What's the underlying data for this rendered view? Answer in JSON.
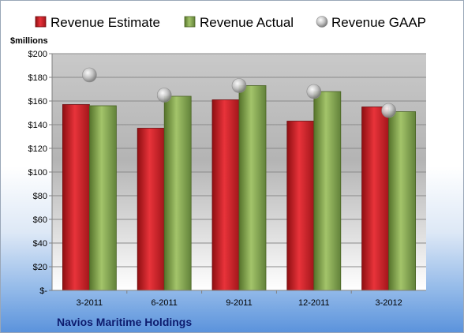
{
  "chart_data": {
    "type": "bar",
    "unit_label": "$millions",
    "company": "Navios Maritime Holdings",
    "categories": [
      "3-2011",
      "6-2011",
      "9-2011",
      "12-2011",
      "3-2012"
    ],
    "y_tick_labels": [
      "$-",
      "$20",
      "$40",
      "$60",
      "$80",
      "$100",
      "$120",
      "$140",
      "$160",
      "$180",
      "$200"
    ],
    "ylim": [
      0,
      200
    ],
    "grid": true,
    "legend_position": "top",
    "series": [
      {
        "name": "Revenue Estimate",
        "mark": "bar",
        "color": "#d9232a",
        "values": [
          157,
          137,
          161,
          143,
          155
        ]
      },
      {
        "name": "Revenue Actual",
        "mark": "bar",
        "color": "#8cae52",
        "values": [
          156,
          164,
          173,
          168,
          151
        ]
      },
      {
        "name": "Revenue GAAP",
        "mark": "marker",
        "color": "#b8b8b8",
        "values": [
          182,
          165,
          173,
          168,
          152
        ]
      }
    ]
  }
}
